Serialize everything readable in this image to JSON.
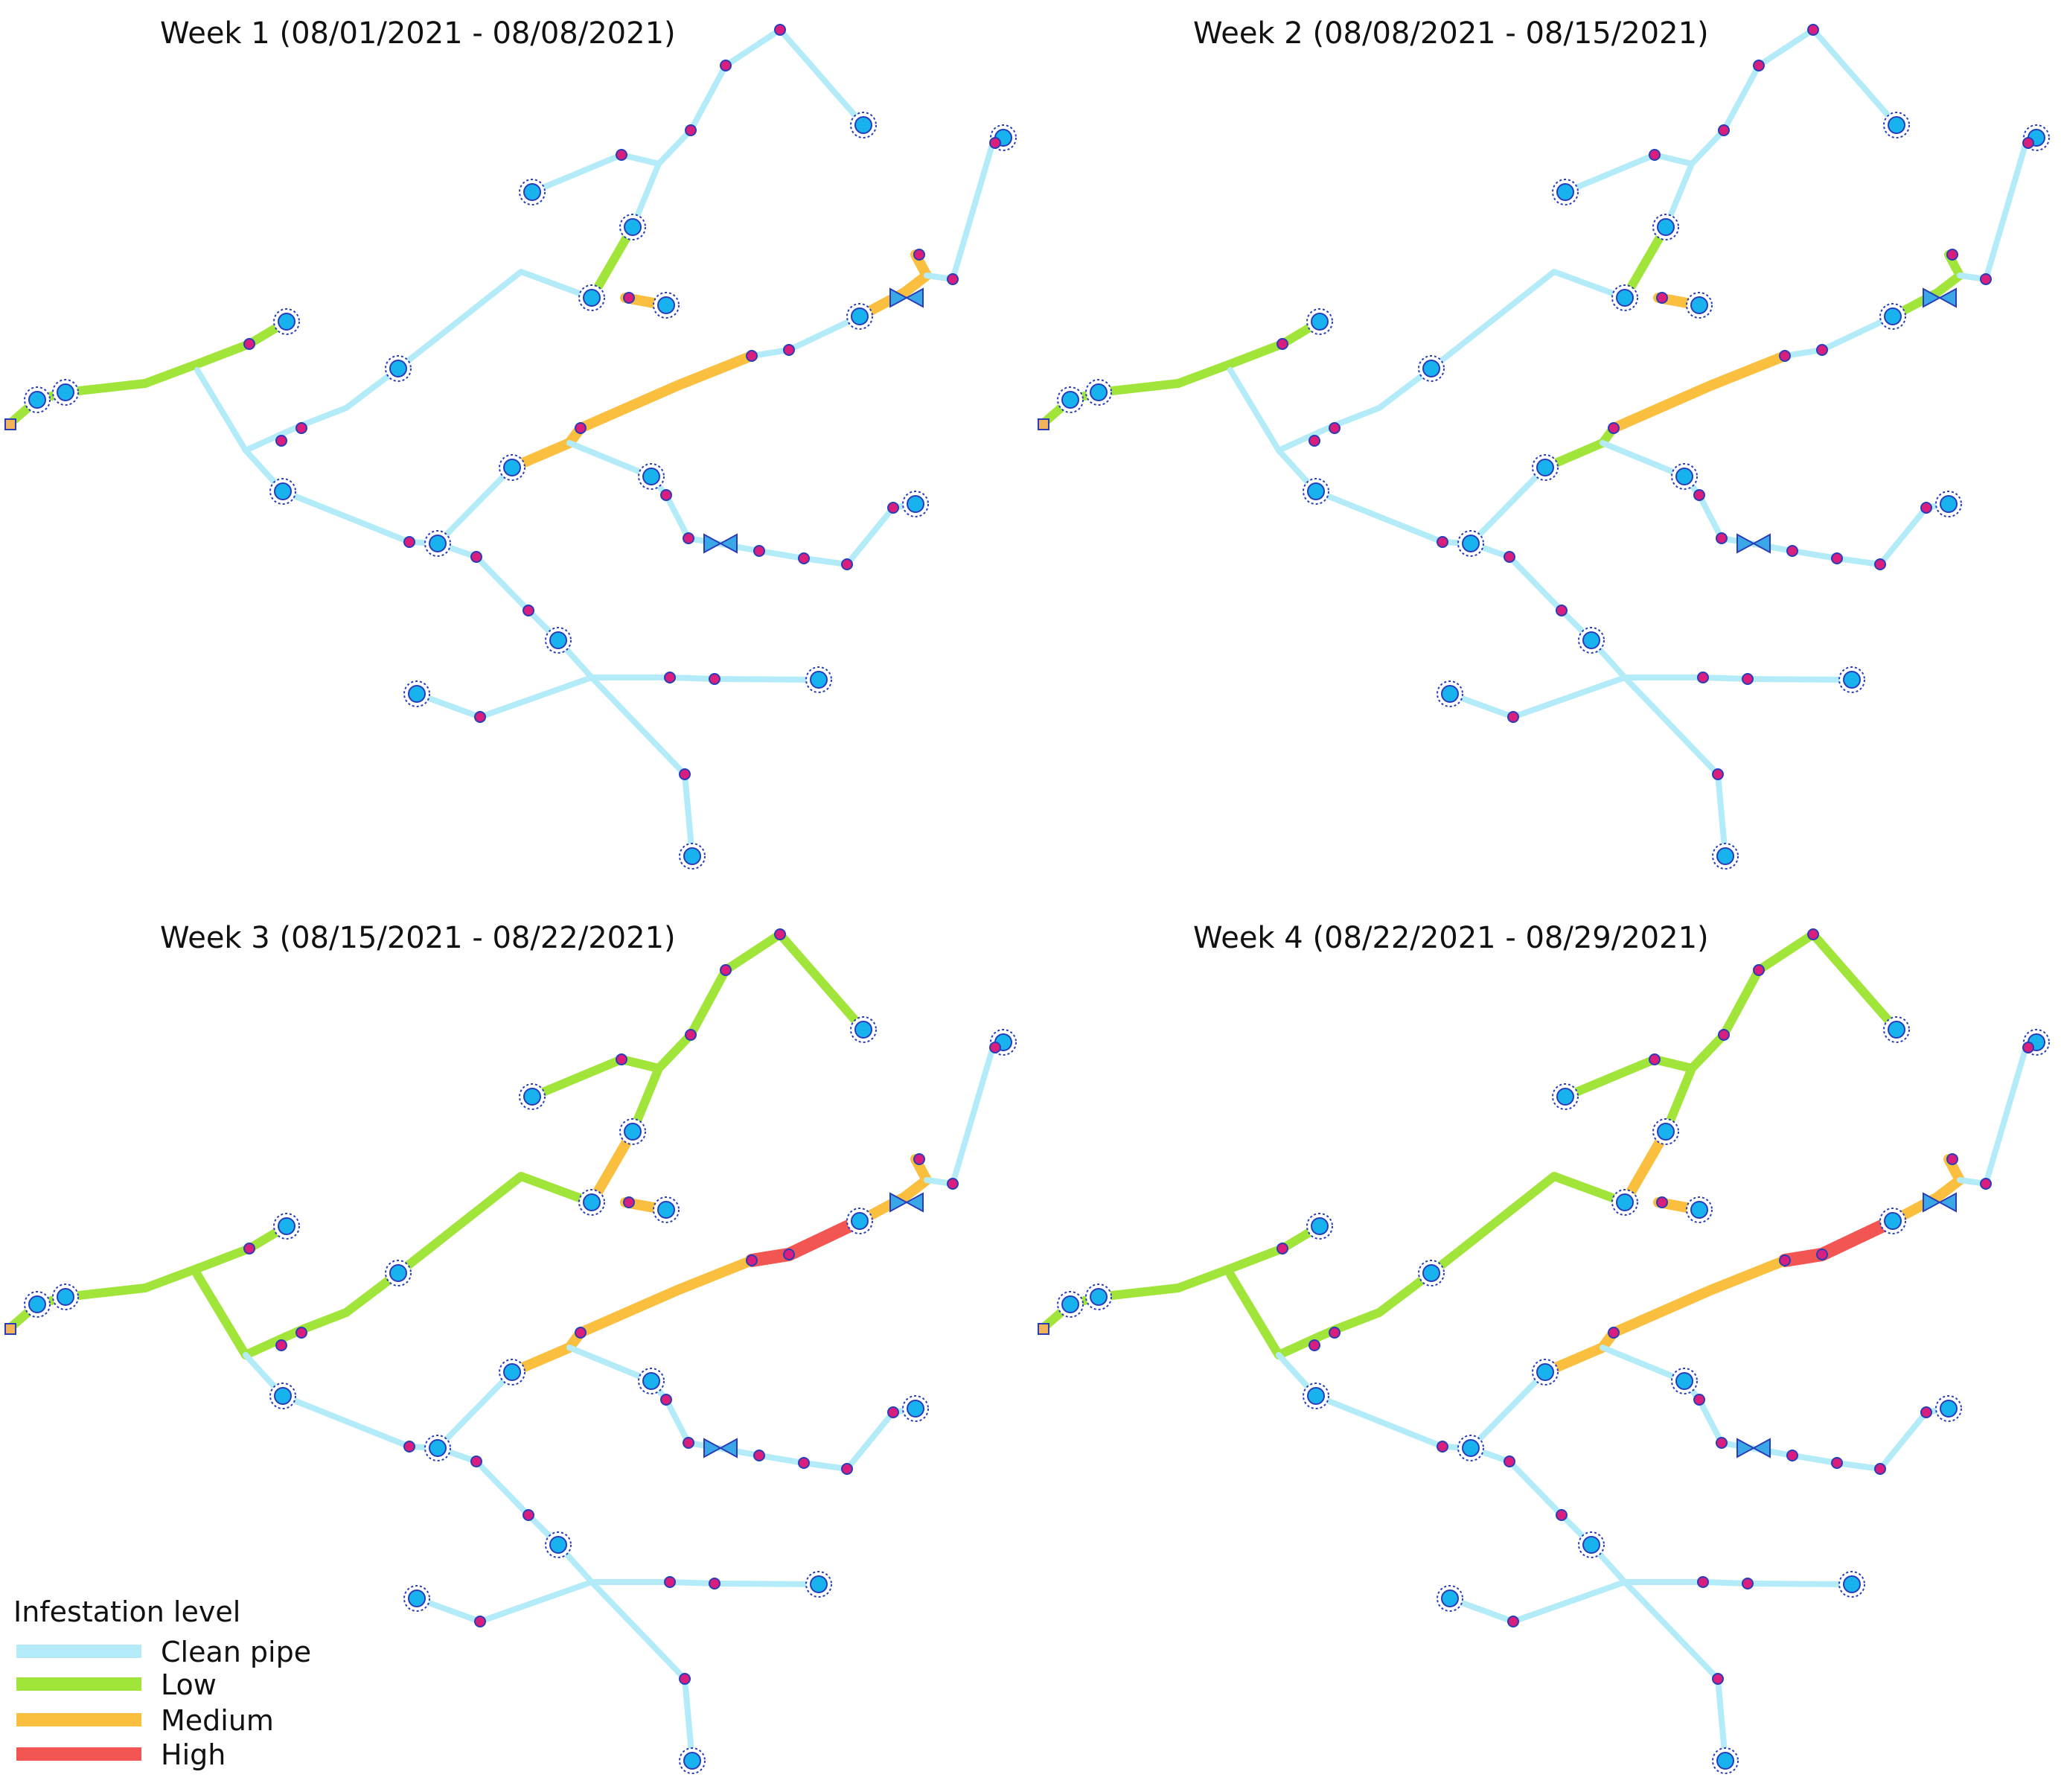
{
  "panels": [
    {
      "title": "Week 1 (08/01/2021 - 08/08/2021)"
    },
    {
      "title": "Week 2 (08/08/2021 - 08/15/2021)"
    },
    {
      "title": "Week 3 (08/15/2021 - 08/22/2021)"
    },
    {
      "title": "Week 4 (08/22/2021 - 08/29/2021)"
    }
  ],
  "legend": {
    "title": "Infestation level",
    "items": [
      {
        "label": "Clean pipe",
        "level": "clean"
      },
      {
        "label": "Low",
        "level": "low"
      },
      {
        "label": "Medium",
        "level": "medium"
      },
      {
        "label": "High",
        "level": "high"
      }
    ]
  },
  "colors": {
    "clean": "#b3ecf8",
    "low": "#a2e53a",
    "medium": "#fbbf3f",
    "high": "#f25552",
    "junction_fill": "#d91e7e",
    "junction_stroke": "#2a3db8",
    "node_fill": "#18b2ee",
    "node_stroke": "#2a3db8",
    "valve_fill": "#3aa7e6"
  },
  "icons": {
    "junction": "junction-dot-icon",
    "node": "manhole-node-icon",
    "valve": "valve-icon",
    "outfall": "outfall-square-icon"
  },
  "network": {
    "pipe_levels": {
      "week1": {
        "A": "low",
        "B": "low",
        "C": "clean",
        "D": "clean",
        "E": "clean",
        "F": "low",
        "G": "medium",
        "H": "clean",
        "I": "clean",
        "J": "medium",
        "K": "clean",
        "L": "medium",
        "M": "medium",
        "N": "clean",
        "O": "clean",
        "P": "clean",
        "Q": "clean",
        "R": "clean",
        "S": "clean",
        "T": "clean",
        "U": "clean",
        "V": "clean",
        "W": "clean",
        "X": "clean",
        "Y": "clean",
        "Z": "clean"
      },
      "week2": {
        "A": "low",
        "B": "low",
        "C": "clean",
        "D": "clean",
        "E": "clean",
        "F": "low",
        "G": "medium",
        "H": "clean",
        "I": "clean",
        "J": "low",
        "K": "clean",
        "L": "medium",
        "M": "low",
        "N": "clean",
        "O": "clean",
        "P": "clean",
        "Q": "clean",
        "R": "clean",
        "S": "clean",
        "T": "clean",
        "U": "clean",
        "V": "clean",
        "W": "clean",
        "X": "clean",
        "Y": "clean",
        "Z": "clean"
      },
      "week3": {
        "A": "low",
        "B": "low",
        "C": "low",
        "D": "low",
        "E": "low",
        "F": "medium",
        "G": "medium",
        "H": "low",
        "I": "low",
        "J": "medium",
        "K": "high",
        "L": "medium",
        "M": "medium",
        "N": "clean",
        "O": "clean",
        "P": "clean",
        "Q": "clean",
        "R": "clean",
        "S": "clean",
        "T": "clean",
        "U": "clean",
        "V": "clean",
        "W": "clean",
        "X": "clean",
        "Y": "clean",
        "Z": "clean"
      },
      "week4": {
        "A": "low",
        "B": "low",
        "C": "low",
        "D": "low",
        "E": "low",
        "F": "medium",
        "G": "medium",
        "H": "low",
        "I": "low",
        "J": "medium",
        "K": "high",
        "L": "medium",
        "M": "medium",
        "N": "clean",
        "O": "clean",
        "P": "clean",
        "Q": "clean",
        "R": "clean",
        "S": "clean",
        "T": "clean",
        "U": "clean",
        "V": "clean",
        "W": "clean",
        "X": "clean",
        "Y": "clean",
        "Z": "clean"
      }
    }
  }
}
